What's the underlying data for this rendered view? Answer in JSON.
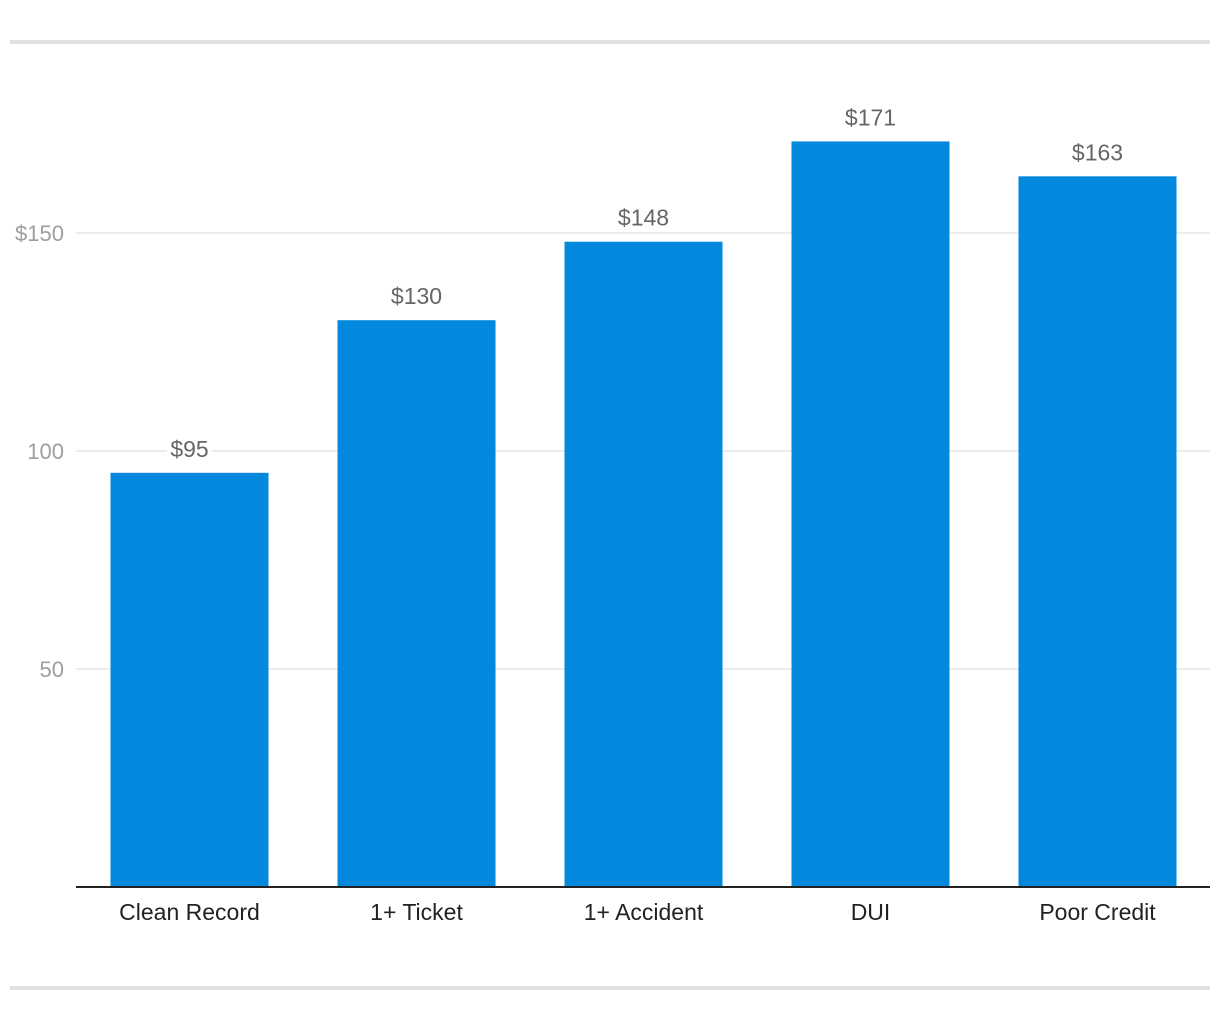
{
  "chart_data": {
    "type": "bar",
    "categories": [
      "Clean Record",
      "1+ Ticket",
      "1+ Accident",
      "DUI",
      "Poor Credit"
    ],
    "values": [
      95,
      130,
      148,
      171,
      163
    ],
    "value_labels": [
      "$95",
      "$130",
      "$148",
      "$171",
      "$163"
    ],
    "title": "",
    "xlabel": "",
    "ylabel": "",
    "ylim": [
      0,
      180
    ],
    "y_ticks": [
      {
        "value": 50,
        "label": "50"
      },
      {
        "value": 100,
        "label": "100"
      },
      {
        "value": 150,
        "label": "$150"
      }
    ],
    "grid": true,
    "bar_color": "#0288dd",
    "grid_color": "#e6e6e6",
    "axis_color": "#222222"
  }
}
